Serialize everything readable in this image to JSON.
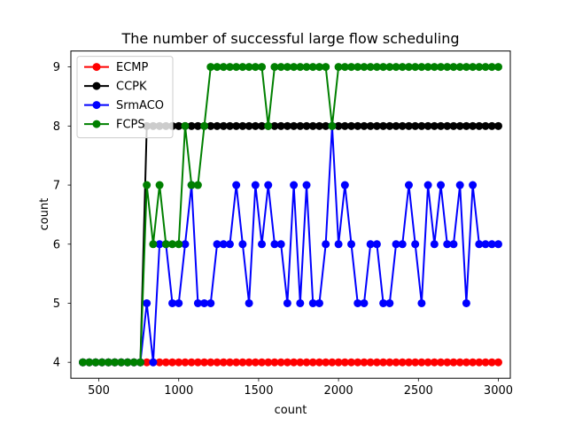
{
  "chart_data": {
    "type": "line",
    "title": "The number of successful large flow scheduling",
    "xlabel": "count",
    "ylabel": "count",
    "xlim": [
      325,
      3075
    ],
    "ylim": [
      3.73,
      9.27
    ],
    "xticks": [
      500,
      1000,
      1500,
      2000,
      2500,
      3000
    ],
    "yticks": [
      4,
      5,
      6,
      7,
      8,
      9
    ],
    "legend_position": "upper-left",
    "x": [
      400,
      440,
      480,
      520,
      560,
      600,
      640,
      680,
      720,
      760,
      800,
      840,
      880,
      920,
      960,
      1000,
      1040,
      1080,
      1120,
      1160,
      1200,
      1240,
      1280,
      1320,
      1360,
      1400,
      1440,
      1480,
      1520,
      1560,
      1600,
      1640,
      1680,
      1720,
      1760,
      1800,
      1840,
      1880,
      1920,
      1960,
      2000,
      2040,
      2080,
      2120,
      2160,
      2200,
      2240,
      2280,
      2320,
      2360,
      2400,
      2440,
      2480,
      2520,
      2560,
      2600,
      2640,
      2680,
      2720,
      2760,
      2800,
      2840,
      2880,
      2920,
      2960,
      3000
    ],
    "series": [
      {
        "name": "ECMP",
        "color": "#ff0000",
        "values": [
          4,
          4,
          4,
          4,
          4,
          4,
          4,
          4,
          4,
          4,
          4,
          4,
          4,
          4,
          4,
          4,
          4,
          4,
          4,
          4,
          4,
          4,
          4,
          4,
          4,
          4,
          4,
          4,
          4,
          4,
          4,
          4,
          4,
          4,
          4,
          4,
          4,
          4,
          4,
          4,
          4,
          4,
          4,
          4,
          4,
          4,
          4,
          4,
          4,
          4,
          4,
          4,
          4,
          4,
          4,
          4,
          4,
          4,
          4,
          4,
          4,
          4,
          4,
          4,
          4,
          4
        ]
      },
      {
        "name": "CCPK",
        "color": "#000000",
        "values": [
          4,
          4,
          4,
          4,
          4,
          4,
          4,
          4,
          4,
          4,
          8,
          8,
          8,
          8,
          8,
          8,
          8,
          8,
          8,
          8,
          8,
          8,
          8,
          8,
          8,
          8,
          8,
          8,
          8,
          8,
          8,
          8,
          8,
          8,
          8,
          8,
          8,
          8,
          8,
          8,
          8,
          8,
          8,
          8,
          8,
          8,
          8,
          8,
          8,
          8,
          8,
          8,
          8,
          8,
          8,
          8,
          8,
          8,
          8,
          8,
          8,
          8,
          8,
          8,
          8,
          8
        ]
      },
      {
        "name": "SrmACO",
        "color": "#0000ff",
        "values": [
          4,
          4,
          4,
          4,
          4,
          4,
          4,
          4,
          4,
          4,
          5,
          4,
          6,
          6,
          5,
          5,
          6,
          7,
          5,
          5,
          5,
          6,
          6,
          6,
          7,
          6,
          5,
          7,
          6,
          7,
          6,
          6,
          5,
          7,
          5,
          7,
          5,
          5,
          6,
          8,
          6,
          7,
          6,
          5,
          5,
          6,
          6,
          5,
          5,
          6,
          6,
          7,
          6,
          5,
          7,
          6,
          7,
          6,
          6,
          7,
          5,
          7,
          6,
          6,
          6,
          6
        ]
      },
      {
        "name": "FCPS",
        "color": "#008000",
        "values": [
          4,
          4,
          4,
          4,
          4,
          4,
          4,
          4,
          4,
          4,
          7,
          6,
          7,
          6,
          6,
          6,
          8,
          7,
          7,
          8,
          9,
          9,
          9,
          9,
          9,
          9,
          9,
          9,
          9,
          8,
          9,
          9,
          9,
          9,
          9,
          9,
          9,
          9,
          9,
          8,
          9,
          9,
          9,
          9,
          9,
          9,
          9,
          9,
          9,
          9,
          9,
          9,
          9,
          9,
          9,
          9,
          9,
          9,
          9,
          9,
          9,
          9,
          9,
          9,
          9,
          9
        ]
      }
    ]
  }
}
